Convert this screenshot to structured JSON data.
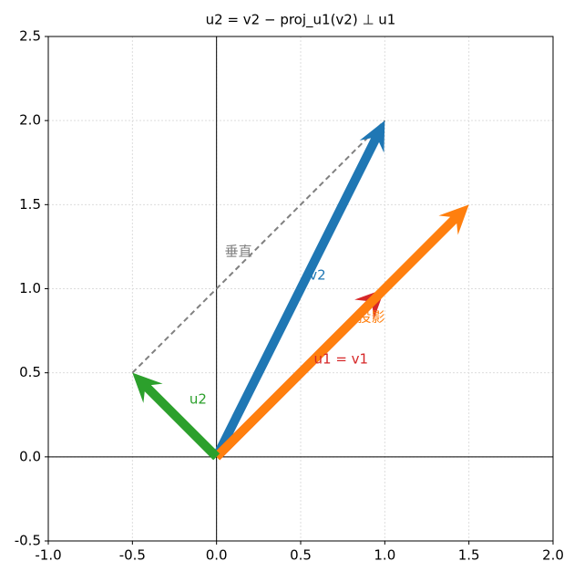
{
  "chart_data": {
    "type": "quiver",
    "title": "u2 = v2 − proj_u1(v2) ⊥ u1",
    "xlim": [
      -1.0,
      2.0
    ],
    "ylim": [
      -0.5,
      2.5
    ],
    "xticks": [
      {
        "value": -1.0,
        "label": "-1.0"
      },
      {
        "value": -0.5,
        "label": "-0.5"
      },
      {
        "value": 0,
        "label": "0.0"
      },
      {
        "value": 0.5,
        "label": "0.5"
      },
      {
        "value": 1.0,
        "label": "1.0"
      },
      {
        "value": 1.5,
        "label": "1.5"
      },
      {
        "value": 2.0,
        "label": "2.0"
      }
    ],
    "yticks": [
      {
        "value": -0.5,
        "label": "-0.5"
      },
      {
        "value": 0,
        "label": "0.0"
      },
      {
        "value": 0.5,
        "label": "0.5"
      },
      {
        "value": 1.0,
        "label": "1.0"
      },
      {
        "value": 1.5,
        "label": "1.5"
      },
      {
        "value": 2.0,
        "label": "2.0"
      },
      {
        "value": 2.5,
        "label": "2.5"
      }
    ],
    "grid": true,
    "vectors": [
      {
        "start": [
          -0.5,
          0.5
        ],
        "end": [
          1,
          2
        ],
        "color": "#808080",
        "dashed": true
      },
      {
        "start": [
          0,
          0
        ],
        "end": [
          1,
          2
        ],
        "color": "#1f77b4"
      },
      {
        "start": [
          0,
          0
        ],
        "end": [
          1,
          1
        ],
        "color": "#d62728"
      },
      {
        "start": [
          0,
          0
        ],
        "end": [
          1.5,
          1.5
        ],
        "color": "#ff7f0e"
      },
      {
        "start": [
          0,
          0
        ],
        "end": [
          -0.5,
          0.5
        ],
        "color": "#2ca02c"
      }
    ],
    "annotations": [
      {
        "text": "垂直",
        "color": "#808080"
      },
      {
        "text": "v2",
        "color": "#1f77b4"
      },
      {
        "text": "投影",
        "color": "#ff7f0e"
      },
      {
        "text": "u1 = v1",
        "color": "#d62728"
      },
      {
        "text": "u2",
        "color": "#2ca02c"
      }
    ]
  }
}
